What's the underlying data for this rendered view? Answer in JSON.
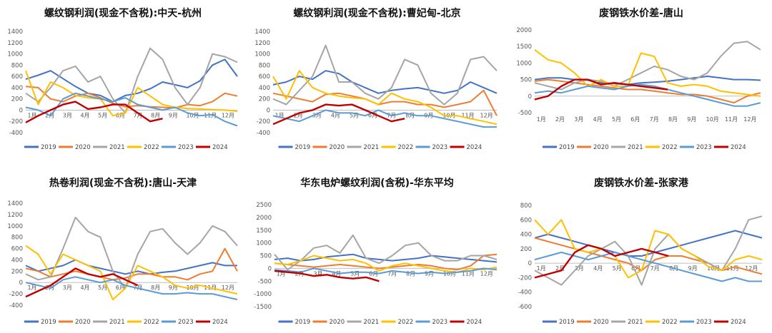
{
  "colors": {
    "2019": "#4472C4",
    "2020": "#ED7D31",
    "2021": "#A5A5A5",
    "2022": "#FFC000",
    "2023": "#5B9BD5",
    "2024": "#C00000"
  },
  "chart_data": [
    {
      "type": "line",
      "title": "螺纹钢利润(现金不含税):中天-杭州",
      "ylim": [
        -400,
        1400
      ],
      "yticks": [
        -400,
        -200,
        0,
        200,
        400,
        600,
        800,
        1000,
        1200,
        1400
      ],
      "xticks": [
        "1月",
        "2月",
        "3月",
        "4月",
        "5月",
        "6月",
        "7月",
        "8月",
        "9月",
        "10月",
        "11月",
        "12月"
      ],
      "series": [
        {
          "name": "2019",
          "values": [
            550,
            620,
            700,
            560,
            420,
            300,
            260,
            150,
            260,
            300,
            380,
            500,
            450,
            400,
            520,
            800,
            900,
            600
          ]
        },
        {
          "name": "2020",
          "values": [
            420,
            400,
            200,
            150,
            250,
            300,
            220,
            120,
            60,
            80,
            60,
            50,
            40,
            100,
            80,
            150,
            300,
            250
          ]
        },
        {
          "name": "2021",
          "values": [
            300,
            150,
            400,
            700,
            780,
            500,
            600,
            200,
            -50,
            600,
            1100,
            900,
            400,
            100,
            400,
            1000,
            950,
            850
          ]
        },
        {
          "name": "2022",
          "values": [
            700,
            100,
            500,
            400,
            260,
            220,
            200,
            -100,
            -50,
            400,
            250,
            100,
            50,
            30,
            20,
            10,
            0,
            -20
          ]
        },
        {
          "name": "2023",
          "values": [
            50,
            0,
            -100,
            200,
            300,
            250,
            200,
            150,
            220,
            100,
            50,
            0,
            50,
            -50,
            -100,
            -80,
            -200,
            -280
          ]
        },
        {
          "name": "2024",
          "values": [
            -220,
            -100,
            0,
            100,
            150,
            20,
            50,
            100,
            100,
            -50,
            -200,
            -150,
            null,
            null,
            null,
            null,
            null,
            null
          ]
        }
      ]
    },
    {
      "type": "line",
      "title": "螺纹钢利润(现金不含税):曹妃甸-北京",
      "ylim": [
        -400,
        1400
      ],
      "yticks": [
        -400,
        -200,
        0,
        200,
        400,
        600,
        800,
        1000,
        1200,
        1400
      ],
      "xticks": [
        "1月",
        "2月",
        "3月",
        "4月",
        "5月",
        "6月",
        "7月",
        "8月",
        "9月",
        "10月",
        "11月",
        "12月"
      ],
      "series": [
        {
          "name": "2019",
          "values": [
            450,
            500,
            600,
            550,
            700,
            650,
            500,
            400,
            300,
            350,
            380,
            400,
            350,
            300,
            350,
            500,
            400,
            300
          ]
        },
        {
          "name": "2020",
          "values": [
            300,
            250,
            200,
            150,
            280,
            300,
            250,
            200,
            100,
            150,
            150,
            100,
            100,
            50,
            100,
            150,
            350,
            -100
          ]
        },
        {
          "name": "2021",
          "values": [
            200,
            100,
            350,
            600,
            1150,
            500,
            500,
            300,
            200,
            400,
            900,
            800,
            300,
            100,
            300,
            900,
            950,
            700
          ]
        },
        {
          "name": "2022",
          "values": [
            600,
            200,
            700,
            400,
            300,
            250,
            220,
            200,
            100,
            300,
            200,
            150,
            50,
            -100,
            -100,
            -150,
            -200,
            -250
          ]
        },
        {
          "name": "2023",
          "values": [
            -100,
            -150,
            -200,
            -100,
            0,
            -50,
            -50,
            -100,
            0,
            -100,
            -50,
            -100,
            -100,
            -150,
            -200,
            -250,
            -300,
            -300
          ]
        },
        {
          "name": "2024",
          "values": [
            -250,
            -150,
            -50,
            0,
            100,
            80,
            100,
            0,
            -100,
            -200,
            -150,
            null,
            null,
            null,
            null,
            null,
            null,
            null
          ]
        }
      ]
    },
    {
      "type": "line",
      "title": "废钢铁水价差-唐山",
      "ylim": [
        -500,
        2000
      ],
      "yticks": [
        -500,
        0,
        500,
        1000,
        1500,
        2000
      ],
      "xticks": [
        "1月",
        "2月",
        "3月",
        "4月",
        "5月",
        "6月",
        "7月",
        "8月",
        "9月",
        "10月",
        "11月",
        "12月"
      ],
      "series": [
        {
          "name": "2019",
          "values": [
            500,
            550,
            550,
            500,
            480,
            400,
            380,
            350,
            400,
            420,
            450,
            500,
            550,
            600,
            550,
            500,
            500,
            480
          ]
        },
        {
          "name": "2020",
          "values": [
            450,
            500,
            450,
            400,
            350,
            300,
            250,
            200,
            200,
            150,
            100,
            50,
            50,
            0,
            -100,
            -200,
            0,
            100
          ]
        },
        {
          "name": "2021",
          "values": [
            400,
            300,
            200,
            400,
            500,
            450,
            300,
            500,
            700,
            900,
            800,
            600,
            500,
            700,
            1200,
            1600,
            1650,
            1400
          ]
        },
        {
          "name": "2022",
          "values": [
            1400,
            1100,
            1000,
            700,
            300,
            500,
            300,
            300,
            1300,
            1200,
            400,
            300,
            350,
            300,
            150,
            100,
            50,
            0
          ]
        },
        {
          "name": "2023",
          "values": [
            100,
            150,
            100,
            200,
            300,
            250,
            200,
            300,
            350,
            300,
            200,
            100,
            0,
            -100,
            -200,
            -300,
            -300,
            -200
          ]
        },
        {
          "name": "2024",
          "values": [
            -100,
            0,
            300,
            500,
            500,
            350,
            400,
            350,
            300,
            250,
            200,
            null,
            null,
            null,
            null,
            null,
            null,
            null
          ]
        }
      ]
    },
    {
      "type": "line",
      "title": "热卷利润(现金不含税):唐山-天津",
      "ylim": [
        -400,
        1400
      ],
      "yticks": [
        -400,
        -200,
        0,
        200,
        400,
        600,
        800,
        1000,
        1200,
        1400
      ],
      "xticks": [
        "1月",
        "2月",
        "3月",
        "4月",
        "5月",
        "6月",
        "7月",
        "8月",
        "9月",
        "10月",
        "11月",
        "12月"
      ],
      "series": [
        {
          "name": "2019",
          "values": [
            300,
            200,
            250,
            300,
            400,
            300,
            250,
            200,
            150,
            200,
            150,
            180,
            200,
            250,
            300,
            350,
            300,
            300
          ]
        },
        {
          "name": "2020",
          "values": [
            250,
            200,
            100,
            150,
            200,
            150,
            100,
            50,
            80,
            150,
            150,
            100,
            100,
            50,
            150,
            200,
            600,
            200
          ]
        },
        {
          "name": "2021",
          "values": [
            150,
            50,
            100,
            600,
            1150,
            900,
            800,
            200,
            -100,
            500,
            900,
            950,
            700,
            500,
            700,
            1000,
            900,
            650
          ]
        },
        {
          "name": "2022",
          "values": [
            650,
            500,
            150,
            500,
            400,
            300,
            200,
            -300,
            -100,
            300,
            200,
            100,
            -50,
            -100,
            -50,
            -100,
            -150,
            -200
          ]
        },
        {
          "name": "2023",
          "values": [
            0,
            -50,
            -100,
            50,
            100,
            50,
            0,
            50,
            -50,
            -100,
            -150,
            -200,
            -200,
            -180,
            -200,
            -200,
            -250,
            -300
          ]
        },
        {
          "name": "2024",
          "values": [
            -250,
            -150,
            -50,
            100,
            250,
            150,
            100,
            150,
            50,
            -50,
            null,
            null,
            null,
            null,
            null,
            null,
            null,
            null
          ]
        }
      ]
    },
    {
      "type": "line",
      "title": "华东电炉螺纹利润(含税)-华东平均",
      "ylim": [
        -1500,
        2500
      ],
      "yticks": [
        -1500,
        -1000,
        -500,
        0,
        500,
        1000,
        1500,
        2000,
        2500
      ],
      "xticks": [
        "1月",
        "2月",
        "3月",
        "4月",
        "5月",
        "6月",
        "7月",
        "8月",
        "9月",
        "10月",
        "11月",
        "12月"
      ],
      "series": [
        {
          "name": "2019",
          "values": [
            350,
            400,
            300,
            350,
            450,
            500,
            550,
            400,
            350,
            300,
            350,
            400,
            500,
            450,
            400,
            350,
            300,
            250
          ]
        },
        {
          "name": "2020",
          "values": [
            200,
            150,
            100,
            50,
            100,
            150,
            100,
            50,
            0,
            50,
            100,
            150,
            100,
            0,
            -50,
            100,
            500,
            550
          ]
        },
        {
          "name": "2021",
          "values": [
            550,
            -50,
            300,
            800,
            900,
            600,
            1300,
            400,
            200,
            500,
            900,
            1000,
            500,
            300,
            300,
            500,
            500,
            350
          ]
        },
        {
          "name": "2022",
          "values": [
            200,
            150,
            300,
            500,
            400,
            300,
            350,
            200,
            -100,
            100,
            200,
            100,
            0,
            -100,
            -150,
            0,
            -50,
            50
          ]
        },
        {
          "name": "2023",
          "values": [
            -50,
            -100,
            -150,
            0,
            -100,
            -200,
            -150,
            -150,
            -200,
            -100,
            -150,
            -200,
            -150,
            -200,
            -150,
            -100,
            0,
            -50
          ]
        },
        {
          "name": "2024",
          "values": [
            -100,
            -150,
            -200,
            -300,
            -250,
            -350,
            -400,
            -350,
            -500,
            null,
            null,
            null,
            null,
            null,
            null,
            null,
            null,
            null
          ]
        }
      ]
    },
    {
      "type": "line",
      "title": "废钢铁水价差-张家港",
      "ylim": [
        -600,
        800
      ],
      "yticks": [
        -600,
        -400,
        -200,
        0,
        200,
        400,
        600,
        800
      ],
      "xticks": [
        "1月",
        "2月",
        "3月",
        "4月",
        "5月",
        "6月",
        "7月",
        "8月",
        "9月",
        "10月",
        "11月",
        "12月"
      ],
      "series": [
        {
          "name": "2019",
          "values": [
            350,
            400,
            350,
            300,
            250,
            200,
            150,
            100,
            100,
            150,
            200,
            250,
            300,
            350,
            400,
            450,
            400,
            350
          ]
        },
        {
          "name": "2020",
          "values": [
            350,
            300,
            250,
            200,
            150,
            100,
            50,
            0,
            -100,
            50,
            100,
            100,
            50,
            0,
            -100,
            -50,
            -100,
            -150
          ]
        },
        {
          "name": "2021",
          "values": [
            -100,
            -200,
            -300,
            -100,
            100,
            200,
            300,
            100,
            -300,
            200,
            400,
            200,
            100,
            0,
            -100,
            200,
            600,
            650
          ]
        },
        {
          "name": "2022",
          "values": [
            600,
            400,
            600,
            200,
            150,
            200,
            100,
            -200,
            -100,
            450,
            400,
            200,
            100,
            -50,
            -100,
            50,
            100,
            50
          ]
        },
        {
          "name": "2023",
          "values": [
            50,
            100,
            150,
            100,
            50,
            100,
            150,
            100,
            50,
            0,
            -50,
            -100,
            -150,
            -200,
            -250,
            -200,
            -250,
            -250
          ]
        },
        {
          "name": "2024",
          "values": [
            -200,
            -150,
            -100,
            150,
            250,
            200,
            100,
            150,
            200,
            150,
            100,
            null,
            null,
            null,
            null,
            null,
            null,
            null
          ]
        }
      ]
    }
  ]
}
